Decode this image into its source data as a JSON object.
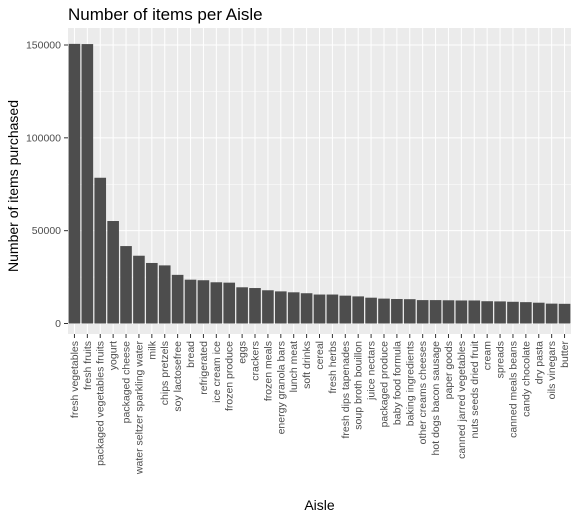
{
  "chart_data": {
    "type": "bar",
    "title": "Number of items per Aisle",
    "xlabel": "Aisle",
    "ylabel": "Number of items purchased",
    "ylim": [
      0,
      160000
    ],
    "yticks": [
      0,
      50000,
      100000,
      150000
    ],
    "ytick_labels": [
      "0",
      "50000",
      "100000",
      "150000"
    ],
    "grid": true,
    "legend": "none",
    "colors": {
      "panel": "#ebebeb",
      "grid_major": "#ffffff",
      "bar": "#4d4d4d",
      "tick": "#333333"
    },
    "categories": [
      "fresh vegetables",
      "fresh fruits",
      "packaged vegetables fruits",
      "yogurt",
      "packaged cheese",
      "water seltzer sparkling water",
      "milk",
      "chips pretzels",
      "soy lactosefree",
      "bread",
      "refrigerated",
      "ice cream ice",
      "frozen produce",
      "eggs",
      "crackers",
      "frozen meals",
      "energy granola bars",
      "lunch meat",
      "soft drinks",
      "cereal",
      "fresh herbs",
      "fresh dips tapenades",
      "soup broth bouillon",
      "juice nectars",
      "packaged produce",
      "baby food formula",
      "baking ingredients",
      "other creams cheeses",
      "hot dogs bacon sausage",
      "paper goods",
      "canned jarred vegetables",
      "nuts seeds dried fruit",
      "cream",
      "spreads",
      "canned meals beans",
      "candy chocolate",
      "dry pasta",
      "oils vinegars",
      "butter"
    ],
    "values": [
      150600,
      150500,
      78500,
      55200,
      41700,
      36500,
      32600,
      31300,
      26200,
      23600,
      23300,
      22200,
      22000,
      19500,
      19100,
      17900,
      17300,
      16800,
      16300,
      15600,
      15600,
      15000,
      14600,
      13900,
      13400,
      13200,
      13100,
      12600,
      12600,
      12500,
      12400,
      12400,
      12000,
      11900,
      11700,
      11500,
      11200,
      10700,
      10600
    ]
  }
}
